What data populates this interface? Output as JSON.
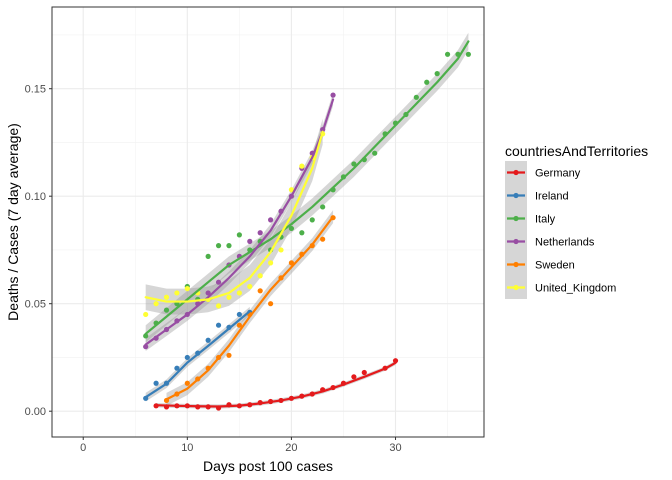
{
  "chart_data": {
    "type": "scatter",
    "xlabel": "Days post 100 cases",
    "ylabel": "Deaths / Cases (7 day average)",
    "xlim": [
      -3,
      38.5
    ],
    "ylim": [
      -0.012,
      0.188
    ],
    "x_ticks": [
      0,
      10,
      20,
      30
    ],
    "x_tick_labels": [
      "0",
      "10",
      "20",
      "30"
    ],
    "y_ticks": [
      0.0,
      0.05,
      0.1,
      0.15
    ],
    "y_tick_labels": [
      "0.00",
      "0.05",
      "0.10",
      "0.15"
    ],
    "grid": true,
    "smoothing": "loess",
    "legend": {
      "title": "countriesAndTerritories",
      "position": "right"
    },
    "series": [
      {
        "name": "Germany",
        "color": "#E41A1C",
        "points": [
          [
            7,
            0.0025
          ],
          [
            8,
            0.002
          ],
          [
            9,
            0.0025
          ],
          [
            10,
            0.0025
          ],
          [
            11,
            0.002
          ],
          [
            12,
            0.002
          ],
          [
            13,
            0.0015
          ],
          [
            14,
            0.003
          ],
          [
            15,
            0.0025
          ],
          [
            16,
            0.003
          ],
          [
            17,
            0.004
          ],
          [
            18,
            0.0045
          ],
          [
            19,
            0.005
          ],
          [
            20,
            0.006
          ],
          [
            21,
            0.007
          ],
          [
            22,
            0.008
          ],
          [
            23,
            0.01
          ],
          [
            24,
            0.011
          ],
          [
            25,
            0.013
          ],
          [
            26,
            0.016
          ],
          [
            27,
            0.018
          ],
          [
            29,
            0.02
          ],
          [
            30,
            0.0235
          ]
        ],
        "fit": [
          [
            7,
            0.0028
          ],
          [
            9,
            0.0025
          ],
          [
            11,
            0.0023
          ],
          [
            13,
            0.0022
          ],
          [
            15,
            0.0026
          ],
          [
            17,
            0.0036
          ],
          [
            19,
            0.005
          ],
          [
            21,
            0.0068
          ],
          [
            23,
            0.0092
          ],
          [
            25,
            0.0124
          ],
          [
            27,
            0.016
          ],
          [
            29,
            0.0198
          ],
          [
            30,
            0.0225
          ]
        ],
        "band": 0.001
      },
      {
        "name": "Ireland",
        "color": "#377EB8",
        "points": [
          [
            6,
            0.006
          ],
          [
            7,
            0.013
          ],
          [
            8,
            0.013
          ],
          [
            9,
            0.02
          ],
          [
            10,
            0.025
          ],
          [
            11,
            0.027
          ],
          [
            12,
            0.033
          ],
          [
            13,
            0.04
          ],
          [
            14,
            0.039
          ],
          [
            15,
            0.045
          ],
          [
            16,
            0.046
          ]
        ],
        "fit": [
          [
            6,
            0.0065
          ],
          [
            8,
            0.0128
          ],
          [
            10,
            0.0226
          ],
          [
            12,
            0.0304
          ],
          [
            14,
            0.0384
          ],
          [
            16,
            0.0465
          ]
        ],
        "band": 0.002
      },
      {
        "name": "Italy",
        "color": "#4DAF4A",
        "points": [
          [
            6,
            0.035
          ],
          [
            7,
            0.041
          ],
          [
            8,
            0.047
          ],
          [
            9,
            0.05
          ],
          [
            10,
            0.058
          ],
          [
            11,
            0.052
          ],
          [
            12,
            0.072
          ],
          [
            13,
            0.077
          ],
          [
            14,
            0.077
          ],
          [
            15,
            0.082
          ],
          [
            16,
            0.075
          ],
          [
            17,
            0.079
          ],
          [
            18,
            0.075
          ],
          [
            19,
            0.081
          ],
          [
            20,
            0.085
          ],
          [
            21,
            0.083
          ],
          [
            22,
            0.089
          ],
          [
            23,
            0.095
          ],
          [
            24,
            0.103
          ],
          [
            25,
            0.109
          ],
          [
            26,
            0.115
          ],
          [
            27,
            0.117
          ],
          [
            28,
            0.12
          ],
          [
            29,
            0.129
          ],
          [
            30,
            0.134
          ],
          [
            31,
            0.138
          ],
          [
            32,
            0.146
          ],
          [
            33,
            0.153
          ],
          [
            34,
            0.157
          ],
          [
            35,
            0.166
          ],
          [
            36,
            0.166
          ],
          [
            37,
            0.166
          ]
        ],
        "fit": [
          [
            6,
            0.036
          ],
          [
            8,
            0.044
          ],
          [
            10,
            0.052
          ],
          [
            12,
            0.06
          ],
          [
            14,
            0.068
          ],
          [
            16,
            0.074
          ],
          [
            18,
            0.08
          ],
          [
            20,
            0.087
          ],
          [
            22,
            0.095
          ],
          [
            24,
            0.104
          ],
          [
            26,
            0.113
          ],
          [
            28,
            0.123
          ],
          [
            30,
            0.133
          ],
          [
            32,
            0.143
          ],
          [
            34,
            0.153
          ],
          [
            36,
            0.164
          ],
          [
            37,
            0.172
          ]
        ],
        "band": 0.004
      },
      {
        "name": "Netherlands",
        "color": "#984EA3",
        "points": [
          [
            6,
            0.03
          ],
          [
            7,
            0.034
          ],
          [
            8,
            0.038
          ],
          [
            9,
            0.042
          ],
          [
            10,
            0.045
          ],
          [
            11,
            0.05
          ],
          [
            12,
            0.055
          ],
          [
            13,
            0.06
          ],
          [
            14,
            0.068
          ],
          [
            15,
            0.072
          ],
          [
            16,
            0.079
          ],
          [
            17,
            0.083
          ],
          [
            18,
            0.089
          ],
          [
            19,
            0.093
          ],
          [
            20,
            0.1
          ],
          [
            21,
            0.113
          ],
          [
            22,
            0.12
          ],
          [
            23,
            0.131
          ],
          [
            24,
            0.147
          ]
        ],
        "fit": [
          [
            6,
            0.031
          ],
          [
            8,
            0.038
          ],
          [
            10,
            0.045
          ],
          [
            12,
            0.053
          ],
          [
            14,
            0.062
          ],
          [
            16,
            0.072
          ],
          [
            18,
            0.084
          ],
          [
            20,
            0.1
          ],
          [
            22,
            0.118
          ],
          [
            23,
            0.13
          ],
          [
            24,
            0.145
          ]
        ],
        "band": 0.003
      },
      {
        "name": "Sweden",
        "color": "#FF7F00",
        "points": [
          [
            8,
            0.005
          ],
          [
            9,
            0.008
          ],
          [
            10,
            0.013
          ],
          [
            11,
            0.015
          ],
          [
            12,
            0.02
          ],
          [
            13,
            0.025
          ],
          [
            14,
            0.026
          ],
          [
            15,
            0.04
          ],
          [
            16,
            0.045
          ],
          [
            17,
            0.056
          ],
          [
            18,
            0.05
          ],
          [
            19,
            0.062
          ],
          [
            20,
            0.069
          ],
          [
            21,
            0.073
          ],
          [
            22,
            0.077
          ],
          [
            23,
            0.08
          ],
          [
            24,
            0.09
          ]
        ],
        "fit": [
          [
            8,
            0.0055
          ],
          [
            10,
            0.0105
          ],
          [
            12,
            0.019
          ],
          [
            14,
            0.0305
          ],
          [
            16,
            0.044
          ],
          [
            18,
            0.0565
          ],
          [
            20,
            0.067
          ],
          [
            22,
            0.0775
          ],
          [
            24,
            0.0905
          ]
        ],
        "band": 0.003
      },
      {
        "name": "United_Kingdom",
        "color": "#FFFF33",
        "points": [
          [
            6,
            0.045
          ],
          [
            7,
            0.05
          ],
          [
            8,
            0.053
          ],
          [
            9,
            0.055
          ],
          [
            10,
            0.057
          ],
          [
            11,
            0.055
          ],
          [
            12,
            0.052
          ],
          [
            13,
            0.049
          ],
          [
            14,
            0.053
          ],
          [
            15,
            0.055
          ],
          [
            16,
            0.058
          ],
          [
            17,
            0.063
          ],
          [
            18,
            0.069
          ],
          [
            19,
            0.075
          ],
          [
            20,
            0.103
          ],
          [
            21,
            0.114
          ],
          [
            22,
            0.118
          ],
          [
            23,
            0.129
          ]
        ],
        "fit": [
          [
            6,
            0.053
          ],
          [
            8,
            0.051
          ],
          [
            10,
            0.051
          ],
          [
            12,
            0.052
          ],
          [
            14,
            0.055
          ],
          [
            16,
            0.062
          ],
          [
            18,
            0.074
          ],
          [
            20,
            0.091
          ],
          [
            22,
            0.113
          ],
          [
            23,
            0.13
          ]
        ],
        "band": 0.006
      }
    ]
  }
}
